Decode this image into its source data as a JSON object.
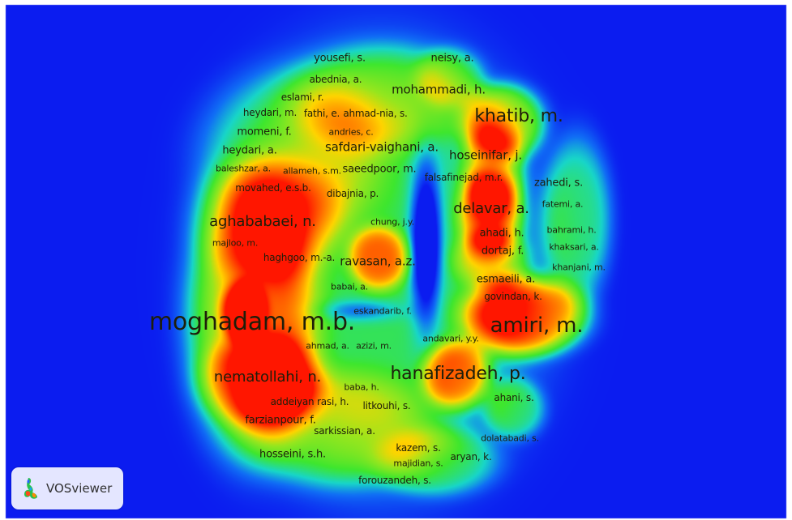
{
  "logo": {
    "text": "VOSviewer",
    "icon": "vosviewer-logo-icon"
  },
  "colors": {
    "background": "#0b1cf0",
    "low": "#1ad6c8",
    "mid": "#3ee62a",
    "high": "#ffd400",
    "peak": "#ff1800"
  },
  "labels": [
    "yousefi, s.",
    "neisy, a.",
    "abednia, a.",
    "mohammadi, h.",
    "eslami, r.",
    "heydari, m.",
    "fathi, e.",
    "ahmad-nia, s.",
    "khatib, m.",
    "momeni, f.",
    "andries, c.",
    "heydari, a.",
    "safdari-vaighani, a.",
    "hoseinifar, j.",
    "baleshzar, a.",
    "allameh, s.m.",
    "saeedpoor, m.",
    "falsafinejad, m.r.",
    "zahedi, s.",
    "movahed, e.s.b.",
    "dibajnia, p.",
    "fatemi, a.",
    "delavar, a.",
    "aghababaei, n.",
    "chung, j.y.",
    "bahrami, h.",
    "ahadi, h.",
    "majloo, m.",
    "khaksari, a.",
    "dortaj, f.",
    "haghgoo, m.-a.",
    "ravasan, a.z.",
    "khanjani, m.",
    "esmaeili, a.",
    "babai, a.",
    "govindan, k.",
    "eskandarib, f.",
    "moghadam, m.b.",
    "amiri, m.",
    "andavari, y.y.",
    "ahmad, a.",
    "azizi, m.",
    "hanafizadeh, p.",
    "nematollahi, n.",
    "baba, h.",
    "ahani, s.",
    "addeiyan rasi, h.",
    "litkouhi, s.",
    "farzianpour, f.",
    "sarkissian, a.",
    "dolatabadi, s.",
    "kazem, s.",
    "aryan, k.",
    "hosseini, s.h.",
    "majidian, s.",
    "forouzandeh, s."
  ]
}
